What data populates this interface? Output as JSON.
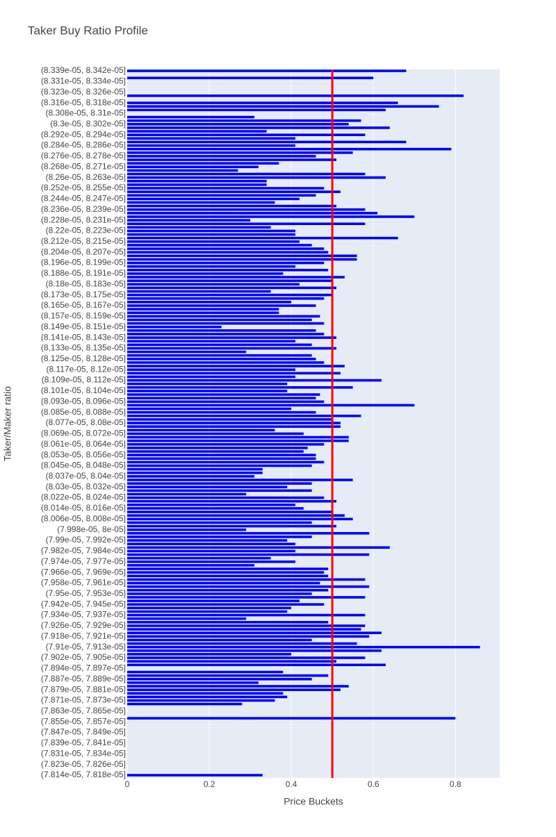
{
  "chart_data": {
    "type": "bar",
    "orientation": "horizontal",
    "title": "Taker Buy Ratio Profile",
    "xlabel": "Price Buckets",
    "ylabel": "Taker/Maker ratio",
    "color": "#0000ff",
    "vline": 0.5,
    "vline_color": "#ff0000",
    "xlim": [
      0,
      0.908
    ],
    "xticks": [
      0,
      0.2,
      0.4,
      0.6,
      0.8
    ],
    "grid": true,
    "categories": [
      "(8.339e-05, 8.342e-05]",
      null,
      null,
      "(8.331e-05, 8.334e-05]",
      null,
      null,
      "(8.323e-05, 8.326e-05]",
      null,
      null,
      "(8.316e-05, 8.318e-05]",
      null,
      null,
      "(8.308e-05, 8.31e-05]",
      null,
      null,
      "(8.3e-05, 8.302e-05]",
      null,
      null,
      "(8.292e-05, 8.294e-05]",
      null,
      null,
      "(8.284e-05, 8.286e-05]",
      null,
      null,
      "(8.276e-05, 8.278e-05]",
      null,
      null,
      "(8.268e-05, 8.271e-05]",
      null,
      null,
      "(8.26e-05, 8.263e-05]",
      null,
      null,
      "(8.252e-05, 8.255e-05]",
      null,
      null,
      "(8.244e-05, 8.247e-05]",
      null,
      null,
      "(8.236e-05, 8.239e-05]",
      null,
      null,
      "(8.228e-05, 8.231e-05]",
      null,
      null,
      "(8.22e-05, 8.223e-05]",
      null,
      null,
      "(8.212e-05, 8.215e-05]",
      null,
      null,
      "(8.204e-05, 8.207e-05]",
      null,
      null,
      "(8.196e-05, 8.199e-05]",
      null,
      null,
      "(8.188e-05, 8.191e-05]",
      null,
      null,
      "(8.18e-05, 8.183e-05]",
      null,
      null,
      "(8.173e-05, 8.175e-05]",
      null,
      null,
      "(8.165e-05, 8.167e-05]",
      null,
      null,
      "(8.157e-05, 8.159e-05]",
      null,
      null,
      "(8.149e-05, 8.151e-05]",
      null,
      null,
      "(8.141e-05, 8.143e-05]",
      null,
      null,
      "(8.133e-05, 8.135e-05]",
      null,
      null,
      "(8.125e-05, 8.128e-05]",
      null,
      null,
      "(8.117e-05, 8.12e-05]",
      null,
      null,
      "(8.109e-05, 8.112e-05]",
      null,
      null,
      "(8.101e-05, 8.104e-05]",
      null,
      null,
      "(8.093e-05, 8.096e-05]",
      null,
      null,
      "(8.085e-05, 8.088e-05]",
      null,
      null,
      "(8.077e-05, 8.08e-05]",
      null,
      null,
      "(8.069e-05, 8.072e-05]",
      null,
      null,
      "(8.061e-05, 8.064e-05]",
      null,
      null,
      "(8.053e-05, 8.056e-05]",
      null,
      null,
      "(8.045e-05, 8.048e-05]",
      null,
      null,
      "(8.037e-05, 8.04e-05]",
      null,
      null,
      "(8.03e-05, 8.032e-05]",
      null,
      null,
      "(8.022e-05, 8.024e-05]",
      null,
      null,
      "(8.014e-05, 8.016e-05]",
      null,
      null,
      "(8.006e-05, 8.008e-05]",
      null,
      null,
      "(7.998e-05, 8e-05]",
      null,
      null,
      "(7.99e-05, 7.992e-05]",
      null,
      null,
      "(7.982e-05, 7.984e-05]",
      null,
      null,
      "(7.974e-05, 7.977e-05]",
      null,
      null,
      "(7.966e-05, 7.969e-05]",
      null,
      null,
      "(7.958e-05, 7.961e-05]",
      null,
      null,
      "(7.95e-05, 7.953e-05]",
      null,
      null,
      "(7.942e-05, 7.945e-05]",
      null,
      null,
      "(7.934e-05, 7.937e-05]",
      null,
      null,
      "(7.926e-05, 7.929e-05]",
      null,
      null,
      "(7.918e-05, 7.921e-05]",
      null,
      null,
      "(7.91e-05, 7.913e-05]",
      null,
      null,
      "(7.902e-05, 7.905e-05]",
      null,
      null,
      "(7.894e-05, 7.897e-05]",
      null,
      null,
      "(7.887e-05, 7.889e-05]",
      null,
      null,
      "(7.879e-05, 7.881e-05]",
      null,
      null,
      "(7.871e-05, 7.873e-05]",
      null,
      null,
      "(7.863e-05, 7.865e-05]",
      null,
      null,
      "(7.855e-05, 7.857e-05]",
      null,
      null,
      "(7.847e-05, 7.849e-05]",
      null,
      null,
      "(7.839e-05, 7.841e-05]",
      null,
      null,
      "(7.831e-05, 7.834e-05]",
      null,
      null,
      "(7.823e-05, 7.826e-05]",
      null,
      null,
      "(7.814e-05, 7.818e-05]"
    ],
    "values": [
      0.68,
      0,
      0.6,
      0,
      0,
      0,
      0,
      0.82,
      0,
      0.66,
      0.76,
      0.63,
      0,
      0.31,
      0.57,
      0.54,
      0.64,
      0.34,
      0.58,
      0.41,
      0.68,
      0.41,
      0.79,
      0.55,
      0.46,
      0.51,
      0.37,
      0.32,
      0.27,
      0.58,
      0.63,
      0.34,
      0.34,
      0.48,
      0.52,
      0.46,
      0.42,
      0.36,
      0.51,
      0.58,
      0.61,
      0.7,
      0.3,
      0.58,
      0.35,
      0.41,
      0.41,
      0.66,
      0.42,
      0.45,
      0.48,
      0.49,
      0.56,
      0.56,
      0.48,
      0.41,
      0.49,
      0.38,
      0.53,
      0.5,
      0.42,
      0.51,
      0.35,
      0.5,
      0.48,
      0.4,
      0.46,
      0.37,
      0.37,
      0.47,
      0.45,
      0.48,
      0.23,
      0.46,
      0.48,
      0.51,
      0.41,
      0.45,
      0.51,
      0.29,
      0.45,
      0.46,
      0.48,
      0.53,
      0.41,
      0.52,
      0.41,
      0.62,
      0.39,
      0.55,
      0.39,
      0.47,
      0.46,
      0.48,
      0.7,
      0.4,
      0.46,
      0.57,
      0.5,
      0.52,
      0.52,
      0.36,
      0.43,
      0.54,
      0.54,
      0.48,
      0.44,
      0.43,
      0.46,
      0.46,
      0.48,
      0.45,
      0.33,
      0.33,
      0.31,
      0.55,
      0.45,
      0.39,
      0.45,
      0.29,
      0.48,
      0.51,
      0.41,
      0.43,
      0.5,
      0.53,
      0.55,
      0.45,
      0.51,
      0.29,
      0.59,
      0.45,
      0.39,
      0.41,
      0.64,
      0.41,
      0.59,
      0.35,
      0.41,
      0.31,
      0.49,
      0.48,
      0.49,
      0.58,
      0.47,
      0.59,
      0.49,
      0.45,
      0.58,
      0.42,
      0.48,
      0.4,
      0.39,
      0.58,
      0.29,
      0.49,
      0.58,
      0.57,
      0.62,
      0.59,
      0.45,
      0.56,
      0.86,
      0.62,
      0.4,
      0.58,
      0.51,
      0.63,
      0,
      0.38,
      0.49,
      0.45,
      0.32,
      0.54,
      0.52,
      0.38,
      0.39,
      0.36,
      0.28,
      0,
      0,
      0,
      0.8,
      0,
      0,
      0,
      0,
      0,
      0,
      0,
      0,
      0,
      0,
      0,
      0,
      0,
      0,
      0,
      0.33
    ]
  }
}
